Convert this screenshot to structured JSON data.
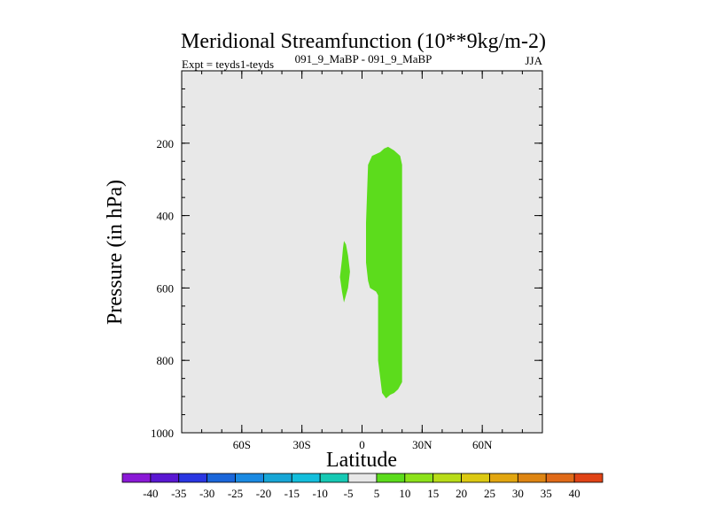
{
  "chart_data": {
    "type": "contour",
    "title": "Meridional Streamfunction (10**9kg/m-2)",
    "subtitle_left": "Expt = teyds1-teyds",
    "subtitle_center": "091_9_MaBP - 091_9_MaBP",
    "subtitle_right": "JJA",
    "xlabel": "Latitude",
    "ylabel": "Pressure (in hPa)",
    "xlim": [
      -90,
      90
    ],
    "ylim": [
      0,
      1000
    ],
    "y_inverted": true,
    "x_ticks": [
      {
        "value": -60,
        "label": "60S"
      },
      {
        "value": -30,
        "label": "30S"
      },
      {
        "value": 0,
        "label": "0"
      },
      {
        "value": 30,
        "label": "30N"
      },
      {
        "value": 60,
        "label": "60N"
      }
    ],
    "y_ticks": [
      {
        "value": 200,
        "label": "200"
      },
      {
        "value": 400,
        "label": "400"
      },
      {
        "value": 600,
        "label": "600"
      },
      {
        "value": 800,
        "label": "800"
      },
      {
        "value": 1000,
        "label": "1000"
      }
    ],
    "background_fill_color": "#e8e8e8",
    "regions": [
      {
        "name": "main-positive-cell",
        "level_range": "5 to 10",
        "color": "#5cdc1c",
        "outline": [
          [
            2,
            1000
          ],
          [
            2,
            420
          ],
          [
            3,
            260
          ],
          [
            5,
            235
          ],
          [
            9,
            225
          ],
          [
            11,
            215
          ],
          [
            13,
            210
          ],
          [
            16,
            220
          ],
          [
            19,
            235
          ],
          [
            20,
            260
          ],
          [
            20,
            280
          ],
          [
            20,
            760
          ],
          [
            20,
            860
          ],
          [
            18,
            880
          ],
          [
            16,
            890
          ],
          [
            14,
            895
          ],
          [
            12,
            905
          ],
          [
            10,
            890
          ],
          [
            8,
            800
          ],
          [
            8,
            620
          ],
          [
            7,
            610
          ],
          [
            4,
            600
          ],
          [
            3,
            580
          ],
          [
            2,
            530
          ],
          [
            2,
            420
          ]
        ]
      },
      {
        "name": "small-positive-cell",
        "level_range": "5 to 10",
        "color": "#5cdc1c",
        "outline": [
          [
            -9,
            470
          ],
          [
            -8,
            480
          ],
          [
            -7,
            510
          ],
          [
            -6,
            555
          ],
          [
            -7,
            600
          ],
          [
            -8,
            620
          ],
          [
            -9,
            640
          ],
          [
            -10,
            610
          ],
          [
            -11,
            570
          ],
          [
            -10,
            520
          ],
          [
            -9.5,
            490
          ]
        ]
      }
    ],
    "colorbar": {
      "levels": [
        -40,
        -35,
        -30,
        -25,
        -20,
        -15,
        -10,
        -5,
        5,
        10,
        15,
        20,
        25,
        30,
        35,
        40
      ],
      "level_labels": [
        "-40",
        "-35",
        "-30",
        "-25",
        "-20",
        "-15",
        "-10",
        "-5",
        "5",
        "10",
        "15",
        "20",
        "25",
        "30",
        "35",
        "40"
      ],
      "colors": [
        "#8a19d6",
        "#5a17d2",
        "#2a36e2",
        "#1a66da",
        "#1a8ae2",
        "#17a6d6",
        "#13bedc",
        "#16c9b4",
        "#e8e8e8",
        "#5cdc1c",
        "#8ce21a",
        "#b8dc18",
        "#dcc912",
        "#e2a610",
        "#de8512",
        "#e06a18",
        "#e04316"
      ]
    }
  }
}
